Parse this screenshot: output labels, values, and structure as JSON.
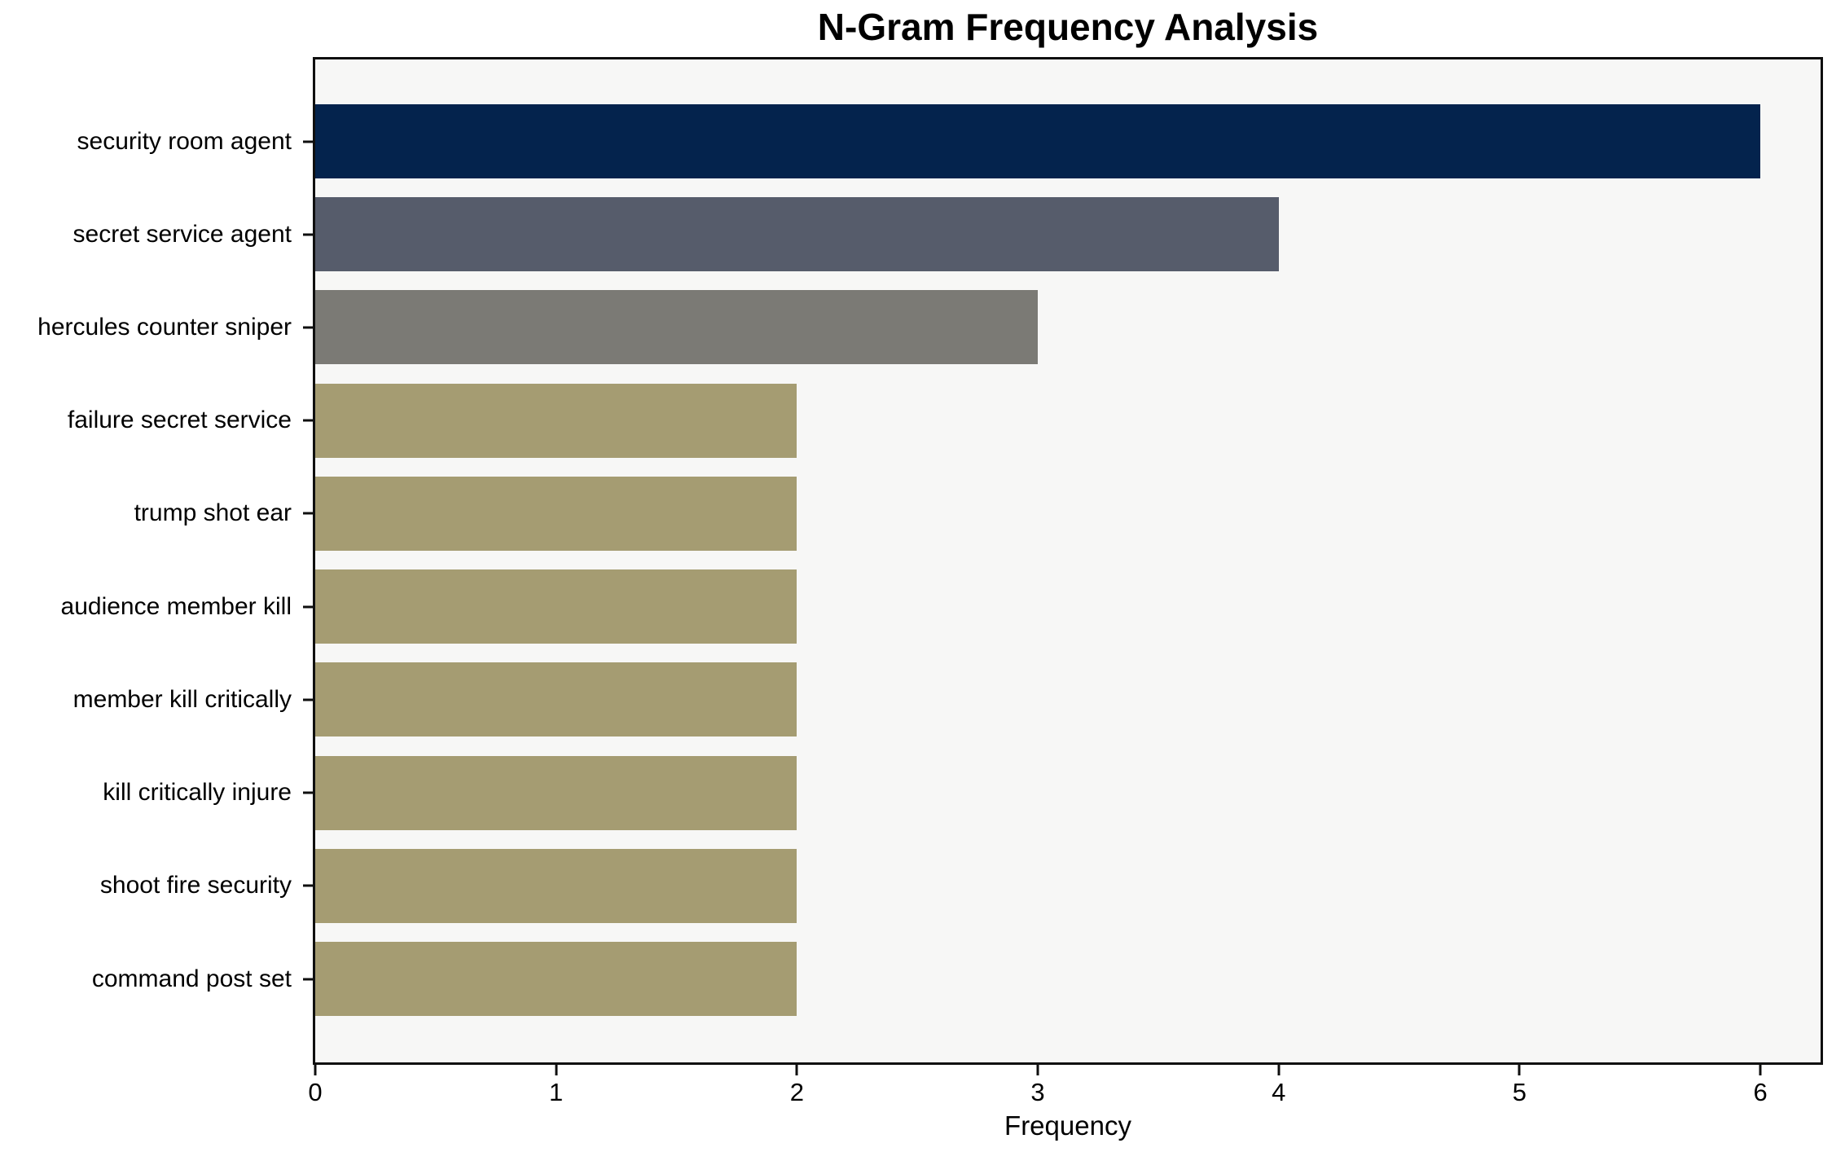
{
  "title": "N-Gram Frequency Analysis",
  "chart_data": {
    "type": "bar",
    "orientation": "horizontal",
    "title": "N-Gram Frequency Analysis",
    "xlabel": "Frequency",
    "ylabel": "",
    "categories": [
      "security room agent",
      "secret service agent",
      "hercules counter sniper",
      "failure secret service",
      "trump shot ear",
      "audience member kill",
      "member kill critically",
      "kill critically injure",
      "shoot fire security",
      "command post set"
    ],
    "values": [
      6,
      4,
      3,
      2,
      2,
      2,
      2,
      2,
      2,
      2
    ],
    "bar_colors": [
      "#04234d",
      "#565c6b",
      "#7b7a75",
      "#a59c72",
      "#a59c72",
      "#a59c72",
      "#a59c72",
      "#a59c72",
      "#a59c72",
      "#a59c72"
    ],
    "x_ticks": [
      "0",
      "1",
      "2",
      "3",
      "4",
      "5",
      "6"
    ],
    "xlim": [
      0,
      6.25
    ],
    "grid": "off",
    "legend": "none",
    "plot_background": "#f7f7f6",
    "frame_color": "#0f0f0f"
  }
}
